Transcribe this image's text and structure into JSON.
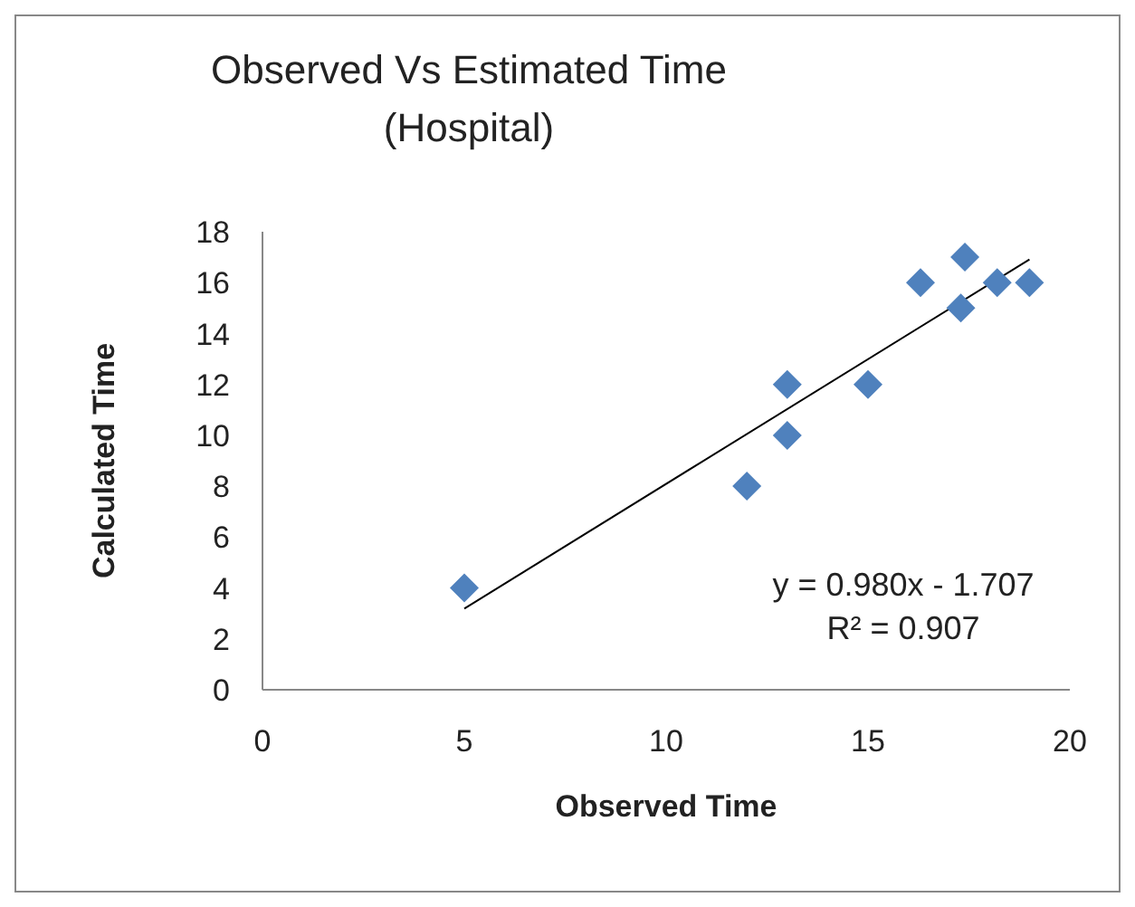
{
  "chart_data": {
    "type": "scatter",
    "title": "Observed Vs Estimated Time (Hospital)",
    "xlabel": "Observed Time",
    "ylabel": "Calculated Time",
    "series": [
      {
        "marker": "diamond",
        "color": "#4f81bd",
        "x": [
          5,
          12,
          13,
          13,
          15,
          16.3,
          17.3,
          17.4,
          18.2,
          19
        ],
        "values": [
          4,
          8,
          12,
          10,
          12,
          16,
          15,
          17,
          16,
          16
        ]
      },
      {
        "type": "line",
        "marker": "none",
        "color": "#000000",
        "x": [
          5,
          19
        ],
        "values": [
          3.19,
          16.91
        ]
      }
    ],
    "xlim": [
      0,
      20
    ],
    "xticks": [
      0,
      5,
      10,
      15,
      20
    ],
    "ylim": [
      0,
      18
    ],
    "yticks": [
      0,
      2,
      4,
      6,
      8,
      10,
      12,
      14,
      16,
      18
    ],
    "grid": false,
    "line_style": "solid",
    "annotations": [
      "y = 0.980x - 1.707",
      "R² = 0.907"
    ]
  }
}
